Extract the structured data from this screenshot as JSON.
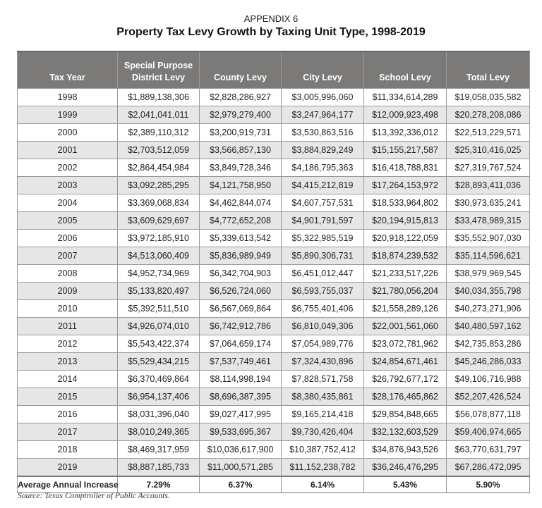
{
  "appendix_label": "APPENDIX 6",
  "title": "Property Tax Levy Growth by Taxing Unit Type, 1998-2019",
  "table": {
    "headers": [
      "Tax Year",
      "Special Purpose District Levy",
      "County Levy",
      "City Levy",
      "School Levy",
      "Total Levy"
    ],
    "rows": [
      [
        "1998",
        "$1,889,138,306",
        "$2,828,286,927",
        "$3,005,996,060",
        "$11,334,614,289",
        "$19,058,035,582"
      ],
      [
        "1999",
        "$2,041,041,011",
        "$2,979,279,400",
        "$3,247,964,177",
        "$12,009,923,498",
        "$20,278,208,086"
      ],
      [
        "2000",
        "$2,389,110,312",
        "$3,200,919,731",
        "$3,530,863,516",
        "$13,392,336,012",
        "$22,513,229,571"
      ],
      [
        "2001",
        "$2,703,512,059",
        "$3,566,857,130",
        "$3,884,829,249",
        "$15,155,217,587",
        "$25,310,416,025"
      ],
      [
        "2002",
        "$2,864,454,984",
        "$3,849,728,346",
        "$4,186,795,363",
        "$16,418,788,831",
        "$27,319,767,524"
      ],
      [
        "2003",
        "$3,092,285,295",
        "$4,121,758,950",
        "$4,415,212,819",
        "$17,264,153,972",
        "$28,893,411,036"
      ],
      [
        "2004",
        "$3,369,068,834",
        "$4,462,844,074",
        "$4,607,757,531",
        "$18,533,964,802",
        "$30,973,635,241"
      ],
      [
        "2005",
        "$3,609,629,697",
        "$4,772,652,208",
        "$4,901,791,597",
        "$20,194,915,813",
        "$33,478,989,315"
      ],
      [
        "2006",
        "$3,972,185,910",
        "$5,339,613,542",
        "$5,322,985,519",
        "$20,918,122,059",
        "$35,552,907,030"
      ],
      [
        "2007",
        "$4,513,060,409",
        "$5,836,989,949",
        "$5,890,306,731",
        "$18,874,239,532",
        "$35,114,596,621"
      ],
      [
        "2008",
        "$4,952,734,969",
        "$6,342,704,903",
        "$6,451,012,447",
        "$21,233,517,226",
        "$38,979,969,545"
      ],
      [
        "2009",
        "$5,133,820,497",
        "$6,526,724,060",
        "$6,593,755,037",
        "$21,780,056,204",
        "$40,034,355,798"
      ],
      [
        "2010",
        "$5,392,511,510",
        "$6,567,069,864",
        "$6,755,401,406",
        "$21,558,289,126",
        "$40,273,271,906"
      ],
      [
        "2011",
        "$4,926,074,010",
        "$6,742,912,786",
        "$6,810,049,306",
        "$22,001,561,060",
        "$40,480,597,162"
      ],
      [
        "2012",
        "$5,543,422,374",
        "$7,064,659,174",
        "$7,054,989,776",
        "$23,072,781,962",
        "$42,735,853,286"
      ],
      [
        "2013",
        "$5,529,434,215",
        "$7,537,749,461",
        "$7,324,430,896",
        "$24,854,671,461",
        "$45,246,286,033"
      ],
      [
        "2014",
        "$6,370,469,864",
        "$8,114,998,194",
        "$7,828,571,758",
        "$26,792,677,172",
        "$49,106,716,988"
      ],
      [
        "2015",
        "$6,954,137,406",
        "$8,696,387,395",
        "$8,380,435,861",
        "$28,176,465,862",
        "$52,207,426,524"
      ],
      [
        "2016",
        "$8,031,396,040",
        "$9,027,417,995",
        "$9,165,214,418",
        "$29,854,848,665",
        "$56,078,877,118"
      ],
      [
        "2017",
        "$8,010,249,365",
        "$9,533,695,367",
        "$9,730,426,404",
        "$32,132,603,529",
        "$59,406,974,665"
      ],
      [
        "2018",
        "$8,469,317,959",
        "$10,036,617,900",
        "$10,387,752,412",
        "$34,876,943,526",
        "$63,770,631,797"
      ],
      [
        "2019",
        "$8,887,185,733",
        "$11,000,571,285",
        "$11,152,238,782",
        "$36,246,476,295",
        "$67,286,472,095"
      ]
    ],
    "average_row": [
      "Average Annual Increase",
      "7.29%",
      "6.37%",
      "6.14%",
      "5.43%",
      "5.90%"
    ]
  },
  "source": "Source: Texas Comptroller of Public Accounts."
}
